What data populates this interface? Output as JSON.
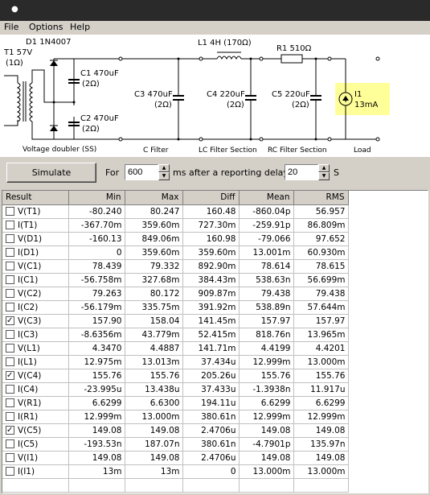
{
  "menu": {
    "file": "File",
    "options": "Options",
    "help": "Help"
  },
  "schematic": {
    "t1_label": "T1 57V",
    "t1_res": "(1Ω)",
    "d1_label": "D1 1N4007",
    "c1_label": "C1 470uF",
    "c1_res": "(2Ω)",
    "c2_label": "C2 470uF",
    "c2_res": "(2Ω)",
    "c3_label": "C3 470uF",
    "c3_res": "(2Ω)",
    "l1_label": "L1 4H (170Ω)",
    "c4_label": "C4 220uF",
    "c4_res": "(2Ω)",
    "r1_label": "R1 510Ω",
    "c5_label": "C5 220uF",
    "c5_res": "(2Ω)",
    "i1_label": "I1",
    "i1_value": "13mA",
    "section_doubler": "Voltage doubler (SS)",
    "section_cfilter": "C Filter",
    "section_lcfilter": "LC Filter Section",
    "section_rcfilter": "RC Filter Section",
    "section_load": "Load",
    "load_highlight_color": "#ffff99"
  },
  "controls": {
    "simulate_label": "Simulate",
    "for_label": "For",
    "duration_value": "600",
    "ms_label": "ms",
    "delay_label": "after a reporting delay of",
    "delay_value": "20",
    "s_label": "S"
  },
  "table": {
    "headers": [
      "Result",
      "Min",
      "Max",
      "Diff",
      "Mean",
      "RMS"
    ],
    "rows": [
      {
        "name": "V(T1)",
        "checked": false,
        "min": "-80.240",
        "max": "80.247",
        "diff": "160.48",
        "mean": "-860.04p",
        "rms": "56.957"
      },
      {
        "name": "I(T1)",
        "checked": false,
        "min": "-367.70m",
        "max": "359.60m",
        "diff": "727.30m",
        "mean": "-259.91p",
        "rms": "86.809m"
      },
      {
        "name": "V(D1)",
        "checked": false,
        "min": "-160.13",
        "max": "849.06m",
        "diff": "160.98",
        "mean": "-79.066",
        "rms": "97.652"
      },
      {
        "name": "I(D1)",
        "checked": false,
        "min": "0",
        "max": "359.60m",
        "diff": "359.60m",
        "mean": "13.001m",
        "rms": "60.930m"
      },
      {
        "name": "V(C1)",
        "checked": false,
        "min": "78.439",
        "max": "79.332",
        "diff": "892.90m",
        "mean": "78.614",
        "rms": "78.615"
      },
      {
        "name": "I(C1)",
        "checked": false,
        "min": "-56.758m",
        "max": "327.68m",
        "diff": "384.43m",
        "mean": "538.63n",
        "rms": "56.699m"
      },
      {
        "name": "V(C2)",
        "checked": false,
        "min": "79.263",
        "max": "80.172",
        "diff": "909.87m",
        "mean": "79.438",
        "rms": "79.438"
      },
      {
        "name": "I(C2)",
        "checked": false,
        "min": "-56.179m",
        "max": "335.75m",
        "diff": "391.92m",
        "mean": "538.89n",
        "rms": "57.644m"
      },
      {
        "name": "V(C3)",
        "checked": true,
        "min": "157.90",
        "max": "158.04",
        "diff": "141.45m",
        "mean": "157.97",
        "rms": "157.97"
      },
      {
        "name": "I(C3)",
        "checked": false,
        "min": "-8.6356m",
        "max": "43.779m",
        "diff": "52.415m",
        "mean": "818.76n",
        "rms": "13.965m"
      },
      {
        "name": "V(L1)",
        "checked": false,
        "min": "4.3470",
        "max": "4.4887",
        "diff": "141.71m",
        "mean": "4.4199",
        "rms": "4.4201"
      },
      {
        "name": "I(L1)",
        "checked": false,
        "min": "12.975m",
        "max": "13.013m",
        "diff": "37.434u",
        "mean": "12.999m",
        "rms": "13.000m"
      },
      {
        "name": "V(C4)",
        "checked": true,
        "min": "155.76",
        "max": "155.76",
        "diff": "205.26u",
        "mean": "155.76",
        "rms": "155.76"
      },
      {
        "name": "I(C4)",
        "checked": false,
        "min": "-23.995u",
        "max": "13.438u",
        "diff": "37.433u",
        "mean": "-1.3938n",
        "rms": "11.917u"
      },
      {
        "name": "V(R1)",
        "checked": false,
        "min": "6.6299",
        "max": "6.6300",
        "diff": "194.11u",
        "mean": "6.6299",
        "rms": "6.6299"
      },
      {
        "name": "I(R1)",
        "checked": false,
        "min": "12.999m",
        "max": "13.000m",
        "diff": "380.61n",
        "mean": "12.999m",
        "rms": "12.999m"
      },
      {
        "name": "V(C5)",
        "checked": true,
        "min": "149.08",
        "max": "149.08",
        "diff": "2.4706u",
        "mean": "149.08",
        "rms": "149.08"
      },
      {
        "name": "I(C5)",
        "checked": false,
        "min": "-193.53n",
        "max": "187.07n",
        "diff": "380.61n",
        "mean": "-4.7901p",
        "rms": "135.97n"
      },
      {
        "name": "V(I1)",
        "checked": false,
        "min": "149.08",
        "max": "149.08",
        "diff": "2.4706u",
        "mean": "149.08",
        "rms": "149.08"
      },
      {
        "name": "I(I1)",
        "checked": false,
        "min": "13m",
        "max": "13m",
        "diff": "0",
        "mean": "13.000m",
        "rms": "13.000m"
      }
    ]
  }
}
